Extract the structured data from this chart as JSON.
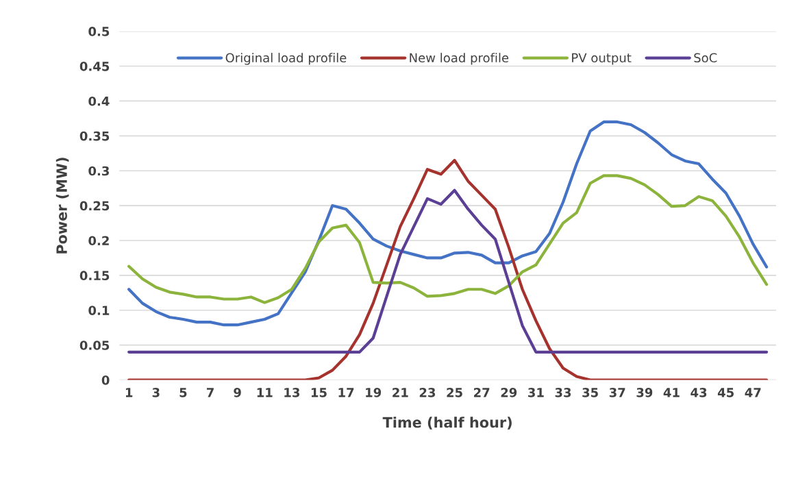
{
  "chart_data": {
    "type": "line",
    "xlabel": "Time (half hour)",
    "ylabel": "Power (MW)",
    "categories": [
      "1",
      null,
      "3",
      null,
      "5",
      null,
      "7",
      null,
      "9",
      null,
      "11",
      null,
      "13",
      null,
      "15",
      null,
      "17",
      null,
      "19",
      null,
      "21",
      null,
      "23",
      null,
      "25",
      null,
      "27",
      null,
      "29",
      null,
      "31",
      null,
      "33",
      null,
      "35",
      null,
      "37",
      null,
      "39",
      null,
      "41",
      null,
      "43",
      null,
      "45",
      null,
      "47",
      null
    ],
    "series": [
      {
        "name": "Original load profile",
        "color": "#4472c4",
        "values": [
          0.13,
          0.11,
          0.098,
          0.09,
          0.087,
          0.083,
          0.083,
          0.079,
          0.079,
          0.083,
          0.087,
          0.095,
          0.125,
          0.155,
          0.2,
          0.25,
          0.245,
          0.225,
          0.202,
          0.192,
          0.185,
          0.18,
          0.175,
          0.175,
          0.182,
          0.183,
          0.179,
          0.168,
          0.168,
          0.178,
          0.184,
          0.21,
          0.255,
          0.31,
          0.357,
          0.37,
          0.37,
          0.366,
          0.355,
          0.34,
          0.323,
          0.314,
          0.31,
          0.288,
          0.268,
          0.235,
          0.195,
          0.162
        ]
      },
      {
        "name": "New load profile",
        "color": "#a5322d",
        "values": [
          0,
          0,
          0,
          0,
          0,
          0,
          0,
          0,
          0,
          0,
          0,
          0,
          0,
          0,
          0.003,
          0.014,
          0.034,
          0.065,
          0.11,
          0.165,
          0.22,
          0.26,
          0.302,
          0.295,
          0.315,
          0.285,
          0.265,
          0.245,
          0.19,
          0.13,
          0.085,
          0.045,
          0.017,
          0.005,
          0,
          0,
          0,
          0,
          0,
          0,
          0,
          0,
          0,
          0,
          0,
          0,
          0,
          0
        ]
      },
      {
        "name": "PV output",
        "color": "#8cb43c",
        "values": [
          0.163,
          0.145,
          0.133,
          0.126,
          0.123,
          0.119,
          0.119,
          0.116,
          0.116,
          0.119,
          0.111,
          0.118,
          0.13,
          0.16,
          0.198,
          0.218,
          0.222,
          0.197,
          0.14,
          0.139,
          0.14,
          0.132,
          0.12,
          0.121,
          0.124,
          0.13,
          0.13,
          0.124,
          0.135,
          0.155,
          0.165,
          0.195,
          0.225,
          0.24,
          0.282,
          0.293,
          0.293,
          0.289,
          0.28,
          0.266,
          0.249,
          0.25,
          0.263,
          0.257,
          0.235,
          0.205,
          0.168,
          0.137
        ]
      },
      {
        "name": "SoC",
        "color": "#5b3f94",
        "values": [
          0.04,
          0.04,
          0.04,
          0.04,
          0.04,
          0.04,
          0.04,
          0.04,
          0.04,
          0.04,
          0.04,
          0.04,
          0.04,
          0.04,
          0.04,
          0.04,
          0.04,
          0.04,
          0.06,
          0.12,
          0.18,
          0.22,
          0.26,
          0.252,
          0.272,
          0.245,
          0.222,
          0.202,
          0.14,
          0.078,
          0.04,
          0.04,
          0.04,
          0.04,
          0.04,
          0.04,
          0.04,
          0.04,
          0.04,
          0.04,
          0.04,
          0.04,
          0.04,
          0.04,
          0.04,
          0.04,
          0.04,
          0.04
        ]
      }
    ],
    "ylim": [
      0,
      0.5
    ],
    "yticks": [
      0,
      0.05,
      0.1,
      0.15,
      0.2,
      0.25,
      0.3,
      0.35,
      0.4,
      0.45,
      0.5
    ],
    "grid": "y",
    "legend": "top",
    "marker": "none",
    "line_style": "solid"
  }
}
